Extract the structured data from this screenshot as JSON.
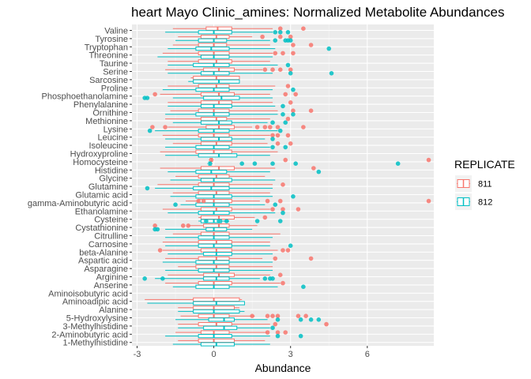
{
  "chart_data": {
    "type": "boxplot",
    "orientation": "horizontal",
    "title": "heart Mayo Clinic_amines: Normalized Metabolite Abundances",
    "xlabel": "Abundance",
    "ylabel": "",
    "xlim": [
      -3.2,
      8.6
    ],
    "xticks": [
      -3,
      0,
      3,
      6
    ],
    "grid": true,
    "legend": {
      "title": "REPLICATE",
      "position": "right",
      "entries": [
        {
          "label": "811",
          "color": "#F8766D"
        },
        {
          "label": "812",
          "color": "#00BFC4"
        }
      ]
    },
    "categories": [
      "Valine",
      "Tyrosine",
      "Tryptophan",
      "Threonine",
      "Taurine",
      "Serine",
      "Sarcosine",
      "Proline",
      "Phosphoethanolamine",
      "Phenylalanine",
      "Ornithine",
      "Methionine",
      "Lysine",
      "Leucine",
      "Isoleucine",
      "Hydroxyproline",
      "Homocysteine",
      "Histidine",
      "Glycine",
      "Glutamine",
      "Glutamic acid",
      "gamma-Aminobutyric acid",
      "Ethanolamine",
      "Cysteine",
      "Cystathionine",
      "Citrulline",
      "Carnosine",
      "beta-Alanine",
      "Aspartic acid",
      "Asparagine",
      "Arginine",
      "Anserine",
      "Aminoisobutyric acid",
      "Aminoadipic acid",
      "Alanine",
      "5-Hydroxylysine",
      "3-Methylhistidine",
      "2-Aminobutyric acid",
      "1-Methylhistidine"
    ],
    "series": [
      {
        "name": "811",
        "color": "#F8766D",
        "boxes": [
          [
            -1.6,
            -0.3,
            0.15,
            0.7,
            2.3,
            [
              2.6,
              3.5
            ]
          ],
          [
            -1.4,
            -0.5,
            0.1,
            0.6,
            1.5,
            [
              1.9,
              2.6,
              3.0
            ]
          ],
          [
            -1.6,
            -0.6,
            0.0,
            0.5,
            2.2,
            [
              3.1,
              3.8
            ]
          ],
          [
            -2.0,
            -0.6,
            0.0,
            0.6,
            2.3,
            [
              2.4,
              2.7,
              3.1
            ]
          ],
          [
            -1.8,
            -0.6,
            0.1,
            0.7,
            2.2,
            []
          ],
          [
            -1.9,
            -0.4,
            0.2,
            0.8,
            1.9,
            [
              2.0,
              2.3,
              2.6,
              3.0
            ]
          ],
          [
            -0.9,
            -0.8,
            0.1,
            1.0,
            1.0,
            []
          ],
          [
            -1.8,
            -0.6,
            0.1,
            0.6,
            2.4,
            [
              2.9
            ]
          ],
          [
            -2.1,
            -0.5,
            0.2,
            0.8,
            2.2,
            [
              -2.3,
              2.8,
              3.2
            ]
          ],
          [
            -1.8,
            -0.5,
            0.2,
            0.7,
            2.3,
            [
              3.0
            ]
          ],
          [
            -1.7,
            -0.6,
            0.0,
            0.6,
            2.5,
            [
              3.1,
              3.8
            ]
          ],
          [
            -1.9,
            -0.5,
            0.1,
            0.5,
            2.2,
            [
              2.9
            ]
          ],
          [
            -1.8,
            -0.3,
            0.2,
            0.8,
            1.5,
            [
              -1.9,
              -2.4,
              1.7,
              2.0,
              2.2,
              2.5,
              3.5
            ]
          ],
          [
            -2.0,
            -0.6,
            0.0,
            0.6,
            2.2,
            [
              2.3,
              2.5,
              2.9
            ]
          ],
          [
            -1.6,
            -0.5,
            0.1,
            0.7,
            2.1,
            [
              2.5,
              3.0
            ]
          ],
          [
            -2.1,
            -0.7,
            0.0,
            0.7,
            2.5,
            []
          ],
          [
            -0.2,
            -0.15,
            -0.1,
            -0.05,
            0.0,
            [
              2.8,
              8.4
            ]
          ],
          [
            -2.1,
            -0.5,
            0.2,
            0.8,
            2.4,
            [
              3.9
            ]
          ],
          [
            -1.5,
            -0.6,
            0.1,
            0.6,
            2.0,
            []
          ],
          [
            -2.2,
            -0.6,
            0.0,
            0.6,
            2.3,
            [
              2.7
            ]
          ],
          [
            -1.6,
            -0.6,
            0.1,
            0.6,
            2.2,
            []
          ],
          [
            -1.1,
            -0.6,
            0.0,
            0.7,
            1.8,
            [
              -0.6,
              -0.4,
              2.1,
              2.6,
              8.4
            ]
          ],
          [
            -2.0,
            -0.5,
            0.1,
            0.7,
            2.2,
            [
              2.3,
              2.7,
              3.3
            ]
          ],
          [
            -0.6,
            -0.5,
            0.2,
            0.8,
            1.6,
            [
              2.0
            ]
          ],
          [
            -1.0,
            -0.4,
            0.2,
            0.6,
            1.7,
            [
              -2.3,
              -1.2,
              -1.0
            ]
          ],
          [
            -1.6,
            -0.5,
            0.0,
            0.6,
            2.6,
            []
          ],
          [
            -2.0,
            -0.6,
            0.1,
            0.7,
            2.2,
            []
          ],
          [
            -2.0,
            -0.5,
            0.1,
            0.7,
            2.5,
            [
              -2.1,
              2.7,
              2.9
            ]
          ],
          [
            -1.9,
            -0.6,
            0.1,
            0.6,
            1.9,
            [
              2.4,
              3.8
            ]
          ],
          [
            -1.4,
            -0.7,
            0.1,
            0.6,
            2.3,
            []
          ],
          [
            -1.8,
            -0.4,
            0.2,
            0.8,
            2.2,
            [
              2.6
            ]
          ],
          [
            -1.9,
            -0.6,
            0.0,
            0.7,
            2.6,
            [
              2.7
            ]
          ],
          [
            0,
            0,
            0,
            0,
            0,
            []
          ],
          [
            -2.7,
            -0.8,
            0.0,
            1.0,
            1.1,
            []
          ],
          [
            -1.4,
            -0.8,
            0.0,
            0.8,
            1.0,
            []
          ],
          [
            -1.3,
            -0.6,
            0.0,
            0.6,
            1.6,
            [
              1.5,
              2.1,
              2.3,
              2.5,
              3.3,
              3.6
            ]
          ],
          [
            -1.4,
            -0.6,
            0.1,
            0.7,
            2.2,
            [
              2.4,
              4.4
            ]
          ],
          [
            -1.5,
            -0.5,
            0.0,
            0.6,
            2.1,
            [
              2.1,
              2.5,
              2.8
            ]
          ],
          [
            -1.4,
            -0.6,
            0.0,
            0.8,
            2.0,
            []
          ]
        ]
      },
      {
        "name": "812",
        "color": "#00BFC4",
        "boxes": [
          [
            -1.9,
            -0.6,
            0.0,
            0.7,
            2.3,
            [
              2.4,
              2.6,
              2.9
            ]
          ],
          [
            -1.5,
            -0.6,
            0.0,
            0.5,
            2.2,
            [
              2.4,
              2.8,
              2.9,
              3.0
            ]
          ],
          [
            -1.8,
            -0.7,
            -0.1,
            0.6,
            2.4,
            [
              4.5
            ]
          ],
          [
            -2.2,
            -0.5,
            0.0,
            0.6,
            2.3,
            []
          ],
          [
            -1.8,
            -0.8,
            0.0,
            0.6,
            2.5,
            [
              2.9
            ]
          ],
          [
            -1.8,
            -0.5,
            0.0,
            0.6,
            2.3,
            [
              3.0,
              4.6
            ]
          ],
          [
            -1.0,
            -0.8,
            0.2,
            1.0,
            1.0,
            []
          ],
          [
            -2.0,
            -0.7,
            0.0,
            0.6,
            2.3,
            [
              3.1
            ]
          ],
          [
            -1.6,
            -0.4,
            0.3,
            1.0,
            2.3,
            [
              -2.7,
              -2.6
            ]
          ],
          [
            -1.8,
            -0.5,
            0.0,
            0.7,
            2.4,
            [
              2.7
            ]
          ],
          [
            -1.9,
            -0.7,
            0.0,
            0.6,
            2.5,
            [
              2.7,
              3.1
            ]
          ],
          [
            -1.6,
            -0.5,
            0.2,
            0.7,
            2.1,
            [
              2.3,
              2.8
            ]
          ],
          [
            -2.3,
            -0.6,
            0.0,
            0.6,
            2.5,
            [
              -2.5,
              2.6
            ]
          ],
          [
            -1.9,
            -0.5,
            0.2,
            0.7,
            2.0,
            [
              2.3
            ]
          ],
          [
            -1.9,
            -0.7,
            0.0,
            0.6,
            2.2,
            [
              2.3,
              2.8
            ]
          ],
          [
            -1.9,
            -0.6,
            0.2,
            0.9,
            2.2,
            []
          ],
          [
            -0.25,
            -0.2,
            -0.15,
            -0.1,
            -0.05,
            [
              1.1,
              1.6,
              2.3,
              3.2,
              7.2
            ]
          ],
          [
            -1.8,
            -0.7,
            -0.1,
            0.5,
            2.2,
            [
              4.1
            ]
          ],
          [
            -1.7,
            -0.5,
            0.0,
            0.7,
            2.4,
            []
          ],
          [
            -2.3,
            -0.8,
            -0.1,
            0.6,
            2.3,
            [
              -2.6
            ]
          ],
          [
            -1.7,
            -0.7,
            0.0,
            0.7,
            2.3,
            [
              3.1
            ]
          ],
          [
            -1.3,
            -0.7,
            0.0,
            0.6,
            2.0,
            [
              -1.5,
              2.4
            ]
          ],
          [
            -1.8,
            -0.6,
            0.0,
            0.6,
            2.4,
            [
              2.7
            ]
          ],
          [
            -0.6,
            -0.5,
            0.0,
            0.3,
            0.6,
            [
              -0.3,
              0.2,
              0.5,
              1.7,
              2.6
            ]
          ],
          [
            -1.9,
            -0.3,
            0.0,
            0.5,
            1.5,
            [
              -2.3,
              -2.2
            ]
          ],
          [
            -1.9,
            -0.6,
            0.0,
            0.6,
            2.3,
            []
          ],
          [
            -1.9,
            -0.6,
            0.0,
            0.7,
            2.2,
            [
              3.0
            ]
          ],
          [
            -1.8,
            -0.4,
            0.1,
            0.7,
            2.3,
            []
          ],
          [
            -2.0,
            -0.7,
            0.0,
            0.6,
            2.3,
            []
          ],
          [
            -1.9,
            -0.6,
            0.0,
            0.6,
            2.3,
            []
          ],
          [
            -2.3,
            -0.4,
            0.1,
            0.6,
            1.8,
            [
              -2.7,
              -2.0,
              2.0,
              2.2,
              2.3
            ]
          ],
          [
            -1.6,
            -0.7,
            0.0,
            0.6,
            2.5,
            [
              3.5
            ]
          ],
          [
            0,
            0,
            0,
            0,
            0,
            []
          ],
          [
            -2.6,
            -0.8,
            0.1,
            1.2,
            1.2,
            []
          ],
          [
            -1.4,
            -0.8,
            0.0,
            1.0,
            1.2,
            []
          ],
          [
            -1.5,
            -0.2,
            0.4,
            0.8,
            2.1,
            [
              2.5,
              3.4,
              3.8,
              4.1
            ]
          ],
          [
            -1.4,
            -0.4,
            0.4,
            0.9,
            2.2,
            [
              2.3
            ]
          ],
          [
            -1.9,
            -0.6,
            0.0,
            0.7,
            2.2,
            [
              2.5,
              3.4
            ]
          ],
          [
            -1.6,
            -0.5,
            0.1,
            0.8,
            2.2,
            []
          ]
        ]
      }
    ]
  }
}
